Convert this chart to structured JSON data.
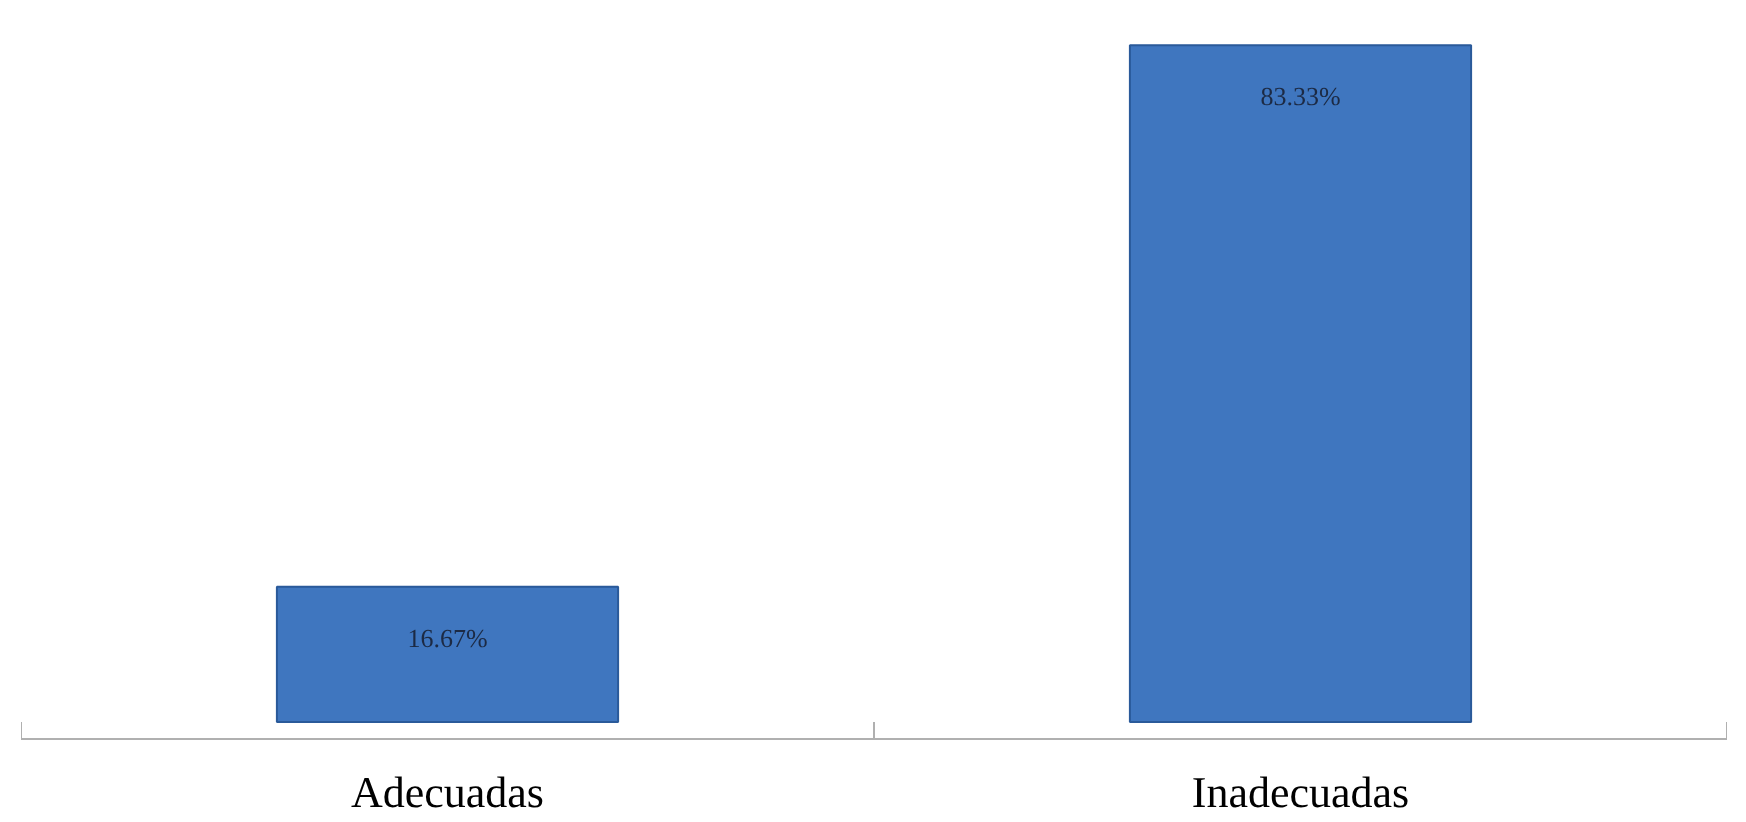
{
  "chart_data": {
    "type": "bar",
    "categories": [
      "Adecuadas",
      "Inadecuadas"
    ],
    "values": [
      16.67,
      83.33
    ],
    "value_labels": [
      "16.67%",
      "83.33%"
    ],
    "color": "#3f76bf",
    "grid": false
  }
}
